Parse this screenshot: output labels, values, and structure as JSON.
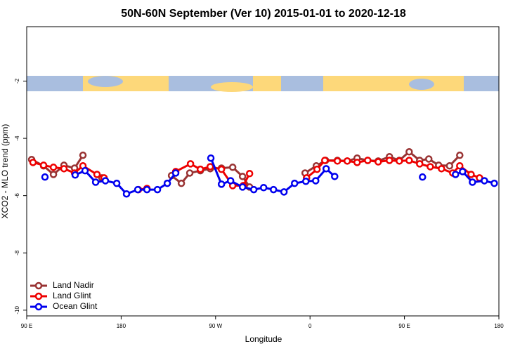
{
  "chart_data": {
    "type": "line",
    "title": "50N-60N September (Ver 10)   2015-01-01 to 2020-12-18",
    "xlabel": "Longitude",
    "ylabel": "XCO2 - MLO trend (ppm)",
    "xlim": [
      90,
      540
    ],
    "ylim": [
      -10.2,
      -0.1
    ],
    "xticks": [
      {
        "value": 90,
        "label": "90 E"
      },
      180,
      {
        "value": 270,
        "label": "90 W"
      },
      {
        "value": 360,
        "label": "0"
      },
      {
        "value": 450,
        "label": "90 E"
      },
      {
        "value": 540,
        "label": "180"
      }
    ],
    "yticks": [
      -10,
      -8,
      -6,
      -4,
      -2
    ],
    "legend": "bottom-left",
    "series": [
      {
        "name": "Land Nadir",
        "color": "#993333",
        "x": [
          94.7,
          106.1,
          115.5,
          125.5,
          135.6,
          143.6,
          null,
          161.7,
          null,
          228.0,
          237.4,
          245.4,
          255.5,
          264.9,
          275.6,
          286.3,
          295.7,
          302.4,
          null,
          355.3,
          366.0,
          374.8,
          386.1,
          395.5,
          404.9,
          415.0,
          425.0,
          435.7,
          445.1,
          454.5,
          464.5,
          473.2,
          482.6,
          493.0,
          502.7
        ],
        "values": [
          -4.74,
          -4.96,
          -5.26,
          -4.94,
          -5.04,
          -4.59,
          null,
          -5.38,
          null,
          -5.3,
          -5.57,
          -5.21,
          -5.13,
          -5.06,
          -5.04,
          -5.01,
          -5.33,
          -5.7,
          null,
          -5.21,
          -4.96,
          -4.77,
          -4.77,
          -4.79,
          -4.69,
          -4.77,
          -4.79,
          -4.64,
          -4.77,
          -4.47,
          -4.77,
          -4.72,
          -4.94,
          -4.96,
          -4.59
        ]
      },
      {
        "name": "Land Glint",
        "color": "#ee0000",
        "x": [
          96.0,
          106.1,
          115.5,
          125.5,
          135.6,
          143.6,
          157.0,
          163.7,
          null,
          196.5,
          204.6,
          null,
          232.0,
          246.1,
          255.5,
          264.9,
          275.6,
          286.3,
          296.4,
          302.4,
          null,
          356.7,
          366.7,
          374.1,
          386.1,
          395.5,
          404.9,
          415.0,
          425.0,
          435.7,
          445.1,
          454.5,
          464.5,
          474.6,
          485.3,
          496.0,
          502.7,
          513.5,
          521.5
        ],
        "values": [
          -4.84,
          -4.94,
          -5.01,
          -5.06,
          -5.21,
          -4.96,
          -5.26,
          -5.38,
          null,
          -5.79,
          -5.75,
          null,
          -5.16,
          -4.89,
          -5.08,
          -4.99,
          -5.08,
          -5.65,
          -5.65,
          -5.23,
          null,
          -5.38,
          -5.08,
          -4.77,
          -4.79,
          -4.79,
          -4.84,
          -4.77,
          -4.82,
          -4.77,
          -4.79,
          -4.77,
          -4.89,
          -4.99,
          -5.06,
          -5.21,
          -4.96,
          -5.26,
          -5.38
        ]
      },
      {
        "name": "Ocean Glint",
        "color": "#0000ee",
        "x": [
          107.4,
          null,
          136.2,
          145.6,
          155.7,
          165.0,
          175.8,
          185.1,
          195.9,
          204.6,
          214.6,
          224.0,
          232.0,
          null,
          265.5,
          275.6,
          284.3,
          295.7,
          306.4,
          315.8,
          325.2,
          335.2,
          345.3,
          356.0,
          365.4,
          375.4,
          383.5,
          null,
          467.2,
          null,
          498.7,
          505.4,
          514.8,
          526.2,
          535.6
        ],
        "values": [
          -5.35,
          null,
          -5.28,
          -5.13,
          -5.53,
          -5.48,
          -5.57,
          -5.94,
          -5.79,
          -5.79,
          -5.79,
          -5.57,
          -5.21,
          null,
          -4.69,
          -5.6,
          -5.48,
          -5.7,
          -5.79,
          -5.72,
          -5.79,
          -5.87,
          -5.57,
          -5.5,
          -5.48,
          -5.06,
          -5.33,
          null,
          -5.35,
          null,
          -5.26,
          -5.16,
          -5.53,
          -5.48,
          -5.57
        ]
      }
    ]
  }
}
